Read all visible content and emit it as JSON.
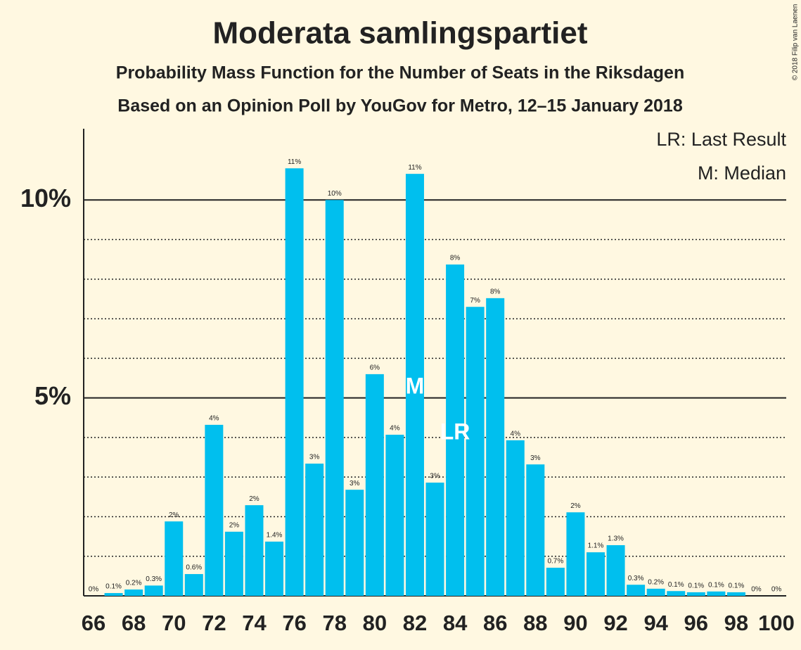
{
  "chart_data": {
    "type": "bar",
    "title": "Moderata samlingspartiet",
    "subtitle": "Probability Mass Function for the Number of Seats in the Riksdagen",
    "subtitle2": "Based on an Opinion Poll by YouGov for Metro, 12–15 January 2018",
    "legend": [
      "LR: Last Result",
      "M: Median"
    ],
    "copyright": "© 2018 Filip van Laenen",
    "median": {
      "category": 82,
      "label": "M"
    },
    "last_result": {
      "category": 84,
      "label": "LR"
    },
    "color": "#00bfee",
    "categories": [
      66,
      null,
      68,
      null,
      70,
      null,
      72,
      null,
      74,
      null,
      76,
      null,
      78,
      null,
      80,
      null,
      82,
      null,
      84,
      null,
      86,
      null,
      88,
      null,
      90,
      null,
      92,
      null,
      94,
      null,
      96,
      null,
      98,
      null,
      100
    ],
    "values": [
      0,
      0.07,
      0.16,
      0.26,
      1.88,
      0.55,
      4.32,
      1.62,
      2.29,
      1.37,
      10.8,
      3.34,
      10.0,
      2.68,
      5.6,
      4.07,
      10.66,
      2.86,
      8.37,
      7.3,
      7.52,
      3.93,
      3.32,
      0.71,
      2.11,
      1.1,
      1.28,
      0.28,
      0.18,
      0.12,
      0.09,
      0.11,
      0.09,
      0,
      0
    ],
    "value_labels": [
      "0%",
      "0.1%",
      "0.2%",
      "0.3%",
      "2%",
      "0.6%",
      "4%",
      "2%",
      "2%",
      "1.4%",
      "11%",
      "3%",
      "10%",
      "3%",
      "6%",
      "4%",
      "11%",
      "3%",
      "8%",
      "7%",
      "8%",
      "4%",
      "3%",
      "0.7%",
      "2%",
      "1.1%",
      "1.3%",
      "0.3%",
      "0.2%",
      "0.1%",
      "0.1%",
      "0.1%",
      "0.1%",
      "0%",
      "0%"
    ],
    "ylim": [
      0,
      11.8
    ],
    "yticks": [
      {
        "value": 5,
        "label": "5%"
      },
      {
        "value": 10,
        "label": "10%"
      }
    ],
    "minor_yticks": [
      1,
      2,
      3,
      4,
      6,
      7,
      8,
      9
    ]
  }
}
